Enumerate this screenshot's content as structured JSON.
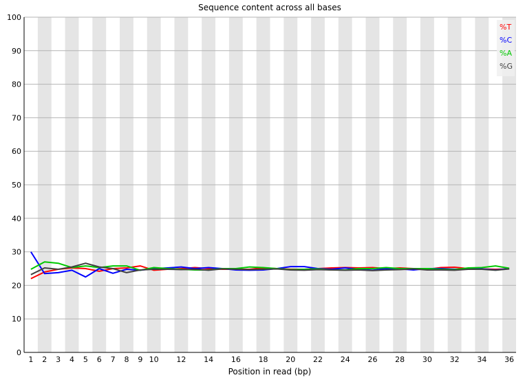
{
  "chart_data": {
    "type": "line",
    "title": "Sequence content across all bases",
    "xlabel": "Position in read (bp)",
    "ylabel": "",
    "ylim": [
      0,
      100
    ],
    "yticks": [
      0,
      10,
      20,
      30,
      40,
      50,
      60,
      70,
      80,
      90,
      100
    ],
    "x": [
      1,
      2,
      3,
      4,
      5,
      6,
      7,
      8,
      9,
      10,
      11,
      12,
      13,
      14,
      15,
      16,
      17,
      18,
      19,
      20,
      21,
      22,
      23,
      24,
      25,
      26,
      27,
      28,
      29,
      30,
      31,
      32,
      33,
      34,
      35,
      36
    ],
    "xtick_labels": [
      "1",
      "2",
      "3",
      "4",
      "5",
      "6",
      "7",
      "8",
      "9",
      "10",
      "12",
      "14",
      "16",
      "18",
      "20",
      "22",
      "24",
      "26",
      "28",
      "30",
      "32",
      "34",
      "36"
    ],
    "grid": true,
    "alternating_column_bands": true,
    "legend_position": "top-right",
    "series": [
      {
        "name": "%T",
        "color": "#ff0000",
        "values": [
          22.0,
          24.0,
          24.8,
          25.2,
          25.0,
          24.2,
          25.0,
          25.2,
          25.8,
          24.5,
          24.8,
          25.0,
          25.3,
          25.0,
          24.8,
          24.8,
          24.8,
          25.2,
          25.0,
          24.8,
          24.8,
          25.0,
          25.2,
          25.3,
          25.2,
          25.3,
          25.0,
          25.2,
          25.0,
          24.8,
          25.3,
          25.4,
          25.0,
          24.9,
          24.8,
          24.9
        ]
      },
      {
        "name": "%C",
        "color": "#0000ff",
        "values": [
          30.0,
          23.5,
          23.8,
          24.5,
          22.5,
          25.0,
          23.6,
          24.8,
          24.5,
          25.0,
          25.2,
          25.5,
          25.0,
          25.3,
          25.0,
          24.6,
          24.5,
          24.6,
          25.0,
          25.6,
          25.6,
          25.0,
          24.8,
          25.2,
          24.8,
          24.5,
          25.0,
          24.9,
          24.6,
          25.0,
          25.0,
          24.8,
          24.9,
          24.9,
          24.6,
          25.0
        ]
      },
      {
        "name": "%A",
        "color": "#00c800",
        "values": [
          24.8,
          27.0,
          26.6,
          25.3,
          25.8,
          25.3,
          25.8,
          25.8,
          24.5,
          25.3,
          25.0,
          24.8,
          24.6,
          24.6,
          25.0,
          25.0,
          25.5,
          25.3,
          25.0,
          24.7,
          24.8,
          24.9,
          24.6,
          24.6,
          25.0,
          25.0,
          25.3,
          25.0,
          25.0,
          25.0,
          24.8,
          24.7,
          25.2,
          25.3,
          25.8,
          25.1
        ]
      },
      {
        "name": "%G",
        "color": "#404040",
        "values": [
          23.2,
          25.2,
          24.8,
          25.5,
          26.6,
          25.5,
          25.0,
          23.8,
          24.6,
          24.8,
          24.8,
          24.7,
          24.8,
          24.5,
          24.9,
          24.8,
          24.7,
          24.8,
          24.9,
          24.6,
          24.5,
          24.7,
          24.6,
          24.5,
          24.6,
          24.4,
          24.6,
          24.7,
          24.9,
          24.6,
          24.6,
          24.5,
          24.8,
          24.8,
          24.5,
          24.9
        ]
      }
    ]
  }
}
